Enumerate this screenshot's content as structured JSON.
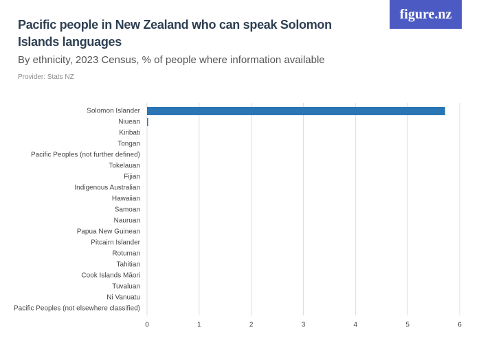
{
  "logo": "figure.nz",
  "chart_data": {
    "type": "bar",
    "orientation": "horizontal",
    "title": "Pacific people in New Zealand who can speak Solomon Islands languages",
    "subtitle": "By ethnicity, 2023 Census, % of people where information available",
    "source": "Provider: Stats NZ",
    "categories": [
      "Solomon Islander",
      "Niuean",
      "Kiribati",
      "Tongan",
      "Pacific Peoples (not further defined)",
      "Tokelauan",
      "Fijian",
      "Indigenous Australian",
      "Hawaiian",
      "Samoan",
      "Nauruan",
      "Papua New Guinean",
      "Pitcairn Islander",
      "Rotuman",
      "Tahitian",
      "Cook Islands Māori",
      "Tuvaluan",
      "Ni Vanuatu",
      "Pacific Peoples (not elsewhere classified)"
    ],
    "values": [
      5.72,
      0.02,
      0,
      0,
      0,
      0,
      0,
      0,
      0,
      0,
      0,
      0,
      0,
      0,
      0,
      0,
      0,
      0,
      0
    ],
    "color": "#2a76b4",
    "xlim": [
      0,
      6
    ],
    "xticks": [
      0,
      1,
      2,
      3,
      4,
      5,
      6
    ],
    "grid": true
  }
}
